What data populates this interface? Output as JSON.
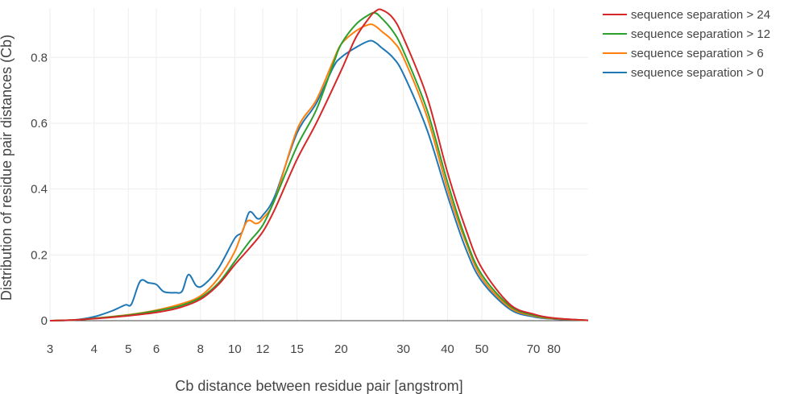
{
  "chart_data": {
    "type": "line",
    "xlabel": "Cb distance between residue pair [angstrom]",
    "ylabel": "Distribution of residue pair distances (Cb)",
    "xscale": "log",
    "xlim": [
      3,
      100
    ],
    "ylim": [
      0,
      0.95
    ],
    "grid": true,
    "legend_position": "top-right",
    "x_ticks": [
      3,
      4,
      5,
      6,
      8,
      10,
      12,
      15,
      20,
      30,
      40,
      50,
      70,
      80
    ],
    "y_ticks": [
      0,
      0.2,
      0.4,
      0.6,
      0.8
    ],
    "x_tick_labels": [
      "3",
      "4",
      "5",
      "6",
      "8",
      "10",
      "12",
      "15",
      "20",
      "30",
      "40",
      "50",
      "70",
      "80"
    ],
    "y_tick_labels": [
      "0",
      "0.2",
      "0.4",
      "0.6",
      "0.8"
    ],
    "series": [
      {
        "name": "sequence separation > 24",
        "color": "#d62728",
        "points": [
          [
            3,
            0
          ],
          [
            3.5,
            0.002
          ],
          [
            4,
            0.006
          ],
          [
            5,
            0.015
          ],
          [
            6,
            0.025
          ],
          [
            7,
            0.04
          ],
          [
            8,
            0.065
          ],
          [
            9,
            0.11
          ],
          [
            10,
            0.17
          ],
          [
            11,
            0.22
          ],
          [
            12,
            0.27
          ],
          [
            13,
            0.34
          ],
          [
            15,
            0.49
          ],
          [
            17,
            0.6
          ],
          [
            20,
            0.76
          ],
          [
            22,
            0.86
          ],
          [
            24,
            0.92
          ],
          [
            25,
            0.94
          ],
          [
            26,
            0.945
          ],
          [
            28,
            0.92
          ],
          [
            30,
            0.86
          ],
          [
            35,
            0.68
          ],
          [
            40,
            0.45
          ],
          [
            45,
            0.28
          ],
          [
            50,
            0.16
          ],
          [
            60,
            0.05
          ],
          [
            70,
            0.02
          ],
          [
            80,
            0.008
          ],
          [
            100,
            0.001
          ]
        ]
      },
      {
        "name": "sequence separation > 12",
        "color": "#2ca02c",
        "points": [
          [
            3,
            0
          ],
          [
            3.5,
            0.002
          ],
          [
            4,
            0.007
          ],
          [
            5,
            0.017
          ],
          [
            6,
            0.03
          ],
          [
            7,
            0.045
          ],
          [
            8,
            0.07
          ],
          [
            9,
            0.115
          ],
          [
            10,
            0.18
          ],
          [
            11,
            0.24
          ],
          [
            12,
            0.29
          ],
          [
            13,
            0.37
          ],
          [
            15,
            0.53
          ],
          [
            17,
            0.64
          ],
          [
            19,
            0.78
          ],
          [
            20,
            0.84
          ],
          [
            22,
            0.9
          ],
          [
            24,
            0.93
          ],
          [
            25,
            0.935
          ],
          [
            26,
            0.92
          ],
          [
            28,
            0.88
          ],
          [
            30,
            0.82
          ],
          [
            35,
            0.64
          ],
          [
            40,
            0.42
          ],
          [
            45,
            0.25
          ],
          [
            50,
            0.14
          ],
          [
            60,
            0.045
          ],
          [
            70,
            0.017
          ],
          [
            80,
            0.007
          ],
          [
            100,
            0.001
          ]
        ]
      },
      {
        "name": "sequence separation > 6",
        "color": "#ff7f0e",
        "points": [
          [
            3,
            0
          ],
          [
            3.5,
            0.002
          ],
          [
            4,
            0.007
          ],
          [
            5,
            0.018
          ],
          [
            6,
            0.032
          ],
          [
            7,
            0.05
          ],
          [
            8,
            0.075
          ],
          [
            9,
            0.13
          ],
          [
            10,
            0.21
          ],
          [
            10.8,
            0.3
          ],
          [
            11.5,
            0.295
          ],
          [
            12,
            0.31
          ],
          [
            13,
            0.37
          ],
          [
            15,
            0.58
          ],
          [
            17,
            0.67
          ],
          [
            19,
            0.79
          ],
          [
            20,
            0.84
          ],
          [
            22,
            0.88
          ],
          [
            24,
            0.9
          ],
          [
            25,
            0.895
          ],
          [
            26,
            0.88
          ],
          [
            28,
            0.85
          ],
          [
            30,
            0.8
          ],
          [
            35,
            0.62
          ],
          [
            40,
            0.4
          ],
          [
            45,
            0.24
          ],
          [
            50,
            0.13
          ],
          [
            60,
            0.04
          ],
          [
            70,
            0.015
          ],
          [
            80,
            0.006
          ],
          [
            100,
            0.001
          ]
        ]
      },
      {
        "name": "sequence separation > 0",
        "color": "#1f77b4",
        "points": [
          [
            3,
            0
          ],
          [
            3.5,
            0.002
          ],
          [
            4,
            0.012
          ],
          [
            4.5,
            0.03
          ],
          [
            4.9,
            0.048
          ],
          [
            5.1,
            0.05
          ],
          [
            5.4,
            0.12
          ],
          [
            5.7,
            0.115
          ],
          [
            6,
            0.11
          ],
          [
            6.3,
            0.088
          ],
          [
            6.8,
            0.085
          ],
          [
            7.1,
            0.09
          ],
          [
            7.4,
            0.14
          ],
          [
            7.8,
            0.105
          ],
          [
            8.2,
            0.11
          ],
          [
            9,
            0.16
          ],
          [
            10,
            0.25
          ],
          [
            10.5,
            0.27
          ],
          [
            11,
            0.33
          ],
          [
            11.6,
            0.31
          ],
          [
            12,
            0.32
          ],
          [
            13,
            0.38
          ],
          [
            15,
            0.57
          ],
          [
            17,
            0.66
          ],
          [
            19,
            0.77
          ],
          [
            20,
            0.8
          ],
          [
            22,
            0.83
          ],
          [
            24,
            0.85
          ],
          [
            25,
            0.845
          ],
          [
            26,
            0.83
          ],
          [
            28,
            0.8
          ],
          [
            30,
            0.75
          ],
          [
            35,
            0.58
          ],
          [
            40,
            0.38
          ],
          [
            45,
            0.22
          ],
          [
            50,
            0.12
          ],
          [
            60,
            0.035
          ],
          [
            70,
            0.012
          ],
          [
            80,
            0.005
          ],
          [
            100,
            0.001
          ]
        ]
      }
    ]
  }
}
